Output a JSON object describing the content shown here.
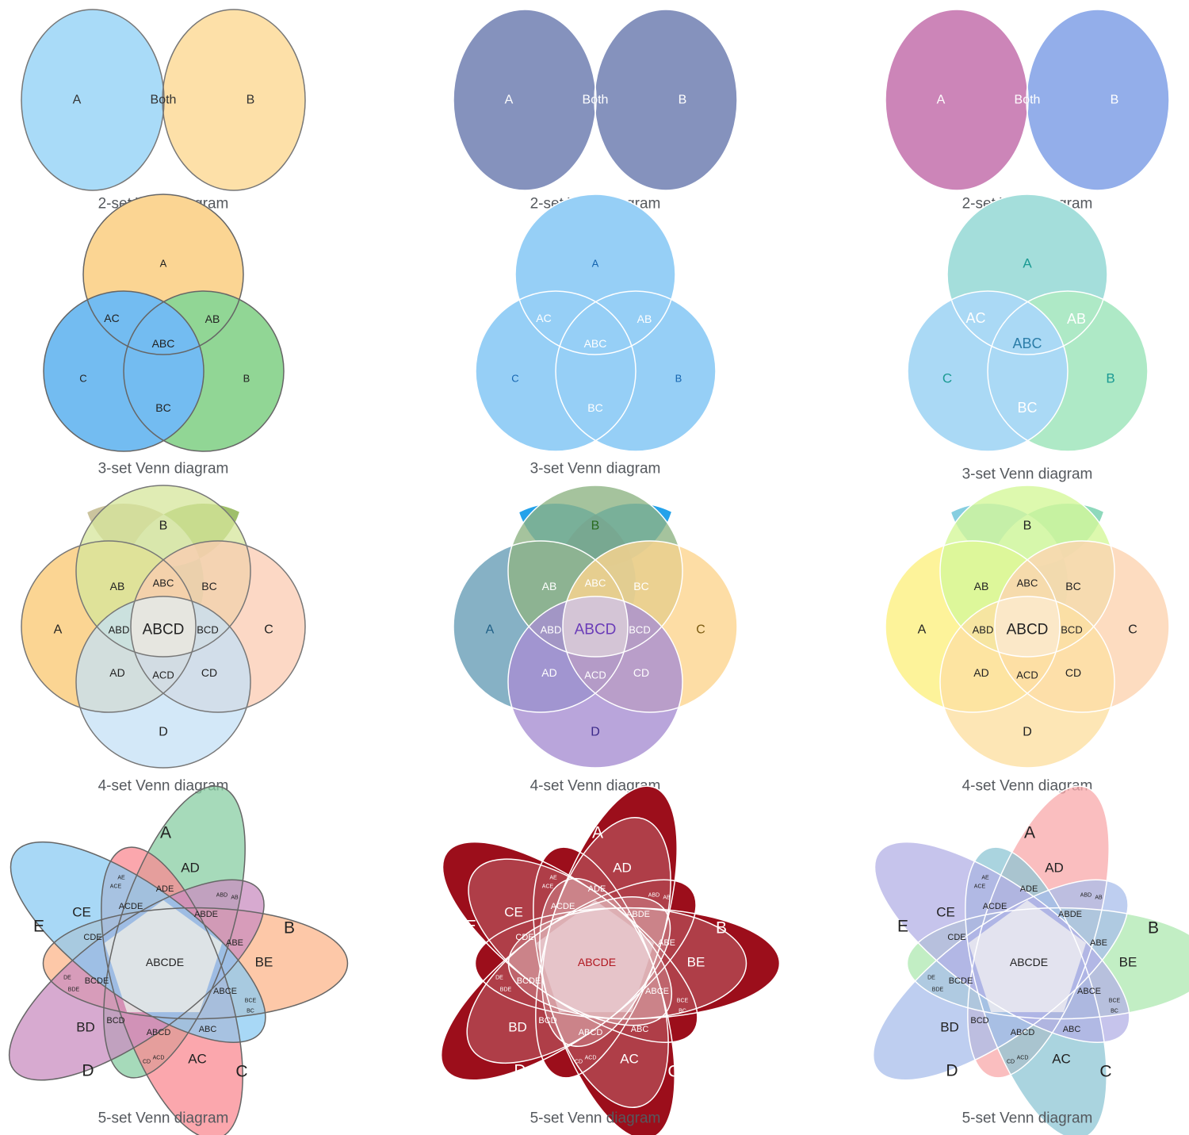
{
  "panels": [
    {
      "id": "venn2-light",
      "type": "venn2",
      "caption": "2-set Venn diagram",
      "style": "light",
      "fills": {
        "A": "#a9dbf8",
        "B": "#fde0a8",
        "AB": "#aec6c5"
      },
      "stroke": "#777777",
      "textColor": "#333333",
      "labels": {
        "A": "A",
        "B": "B",
        "AB": "Both"
      }
    },
    {
      "id": "venn2-navy",
      "type": "venn2",
      "caption": "2-set Venn diagram",
      "style": "navy",
      "fills": {
        "A": "#8592bd",
        "B": "#8592bd",
        "AB": "#3d5598"
      },
      "stroke": "#ffffff",
      "textColor": "#ffffff",
      "labels": {
        "A": "A",
        "B": "B",
        "AB": "Both"
      }
    },
    {
      "id": "venn2-purple",
      "type": "venn2",
      "caption": "2-set Venn diagram",
      "style": "purple",
      "fills": {
        "A": "#cc85b8",
        "B": "#93aeea",
        "AB": "#855aa8"
      },
      "stroke": "#ffffff",
      "textColor": "#ffffff",
      "labels": {
        "A": "A",
        "B": "B",
        "AB": "Both"
      }
    },
    {
      "id": "venn3-light",
      "type": "venn3",
      "caption": "3-set Venn diagram",
      "style": "light",
      "fills": {
        "A": "#fbd593",
        "B": "#91d695",
        "C": "#73bcf1",
        "AB": "#9fbf6a",
        "AC": "#cbc49e",
        "BC": "#6dc6a5",
        "ABC": "#e4ecdf"
      },
      "stroke": "#666666",
      "textColor": "#222222",
      "labels": {
        "A": "A",
        "B": "B",
        "C": "C",
        "AB": "AB",
        "AC": "AC",
        "BC": "BC",
        "ABC": "ABC"
      }
    },
    {
      "id": "venn3-blue",
      "type": "venn3",
      "caption": "3-set Venn diagram",
      "style": "blue",
      "fills": {
        "A": "#96cff6",
        "B": "#96cff6",
        "C": "#96cff6",
        "AB": "#24a2ea",
        "AC": "#24a2ea",
        "BC": "#24a2ea",
        "ABC": "#1e77c4"
      },
      "stroke": "#ffffff",
      "textColor": "#ffffff",
      "outerTextColor": "#1565b0",
      "labels": {
        "A": "A",
        "B": "B",
        "C": "C",
        "AB": "AB",
        "AC": "AC",
        "BC": "BC",
        "ABC": "ABC"
      }
    },
    {
      "id": "venn3-teal",
      "type": "venn3",
      "caption": "3-set Venn diagram",
      "style": "teal",
      "fills": {
        "A": "#a4dedb",
        "B": "#aee9c6",
        "C": "#aad9f5",
        "AB": "#8ed9bc",
        "AC": "#86cee0",
        "BC": "#91dccd",
        "ABC": "#ddf2ee"
      },
      "stroke": "#ffffff",
      "textColor": "#ffffff",
      "outerTextColor": "#1b9a93",
      "centerTextColor": "#2b7da8",
      "labels": {
        "A": "A",
        "B": "B",
        "C": "C",
        "AB": "AB",
        "AC": "AC",
        "BC": "BC",
        "ABC": "ABC"
      }
    },
    {
      "id": "venn4-light",
      "type": "venn4",
      "caption": "4-set Venn diagram",
      "style": "light",
      "fills": {
        "A": "#fbd593",
        "B": "#d6e59b",
        "C": "#fbcbb1",
        "D": "#c4e0f5",
        "center": "#e6e6e0"
      },
      "overlayOpacity": 0.55,
      "stroke": "#777777",
      "textColor": "#222222",
      "labels": {
        "A": "A",
        "B": "B",
        "C": "C",
        "D": "D",
        "AB": "AB",
        "ABC": "ABC",
        "BC": "BC",
        "ABD": "ABD",
        "ABCD": "ABCD",
        "BCD": "BCD",
        "AD": "AD",
        "ACD": "ACD",
        "CD": "CD"
      }
    },
    {
      "id": "venn4-dark",
      "type": "venn4",
      "caption": "4-set Venn diagram",
      "style": "dark",
      "fills": {
        "A": "#86b1c5",
        "B": "#8eb484",
        "C": "#fdd48e",
        "D": "#a78ed2",
        "center": "#d4c5d6"
      },
      "overlayOpacity": 0.6,
      "stroke": "#ffffff",
      "textColor": "#ffffff",
      "outerTextColors": {
        "A": "#1f5f86",
        "B": "#2a6b1f",
        "C": "#7a5a10",
        "D": "#3c2a8a"
      },
      "centerTextColor": "#6a3cb8",
      "labels": {
        "A": "A",
        "B": "B",
        "C": "C",
        "D": "D",
        "AB": "AB",
        "ABC": "ABC",
        "BC": "BC",
        "ABD": "ABD",
        "ABCD": "ABCD",
        "BCD": "BCD",
        "AD": "AD",
        "ACD": "ACD",
        "CD": "CD"
      }
    },
    {
      "id": "venn4-yellow",
      "type": "venn4",
      "caption": "4-set Venn diagram",
      "style": "yellow",
      "fills": {
        "A": "#fdf39a",
        "B": "#d4f89a",
        "C": "#fdd3b0",
        "D": "#fde0a3",
        "center": "#fbe8c8"
      },
      "overlayOpacity": 0.6,
      "stroke": "#ffffff",
      "textColor": "#222222",
      "labels": {
        "A": "A",
        "B": "B",
        "C": "C",
        "D": "D",
        "AB": "AB",
        "ABC": "ABC",
        "BC": "BC",
        "ABD": "ABD",
        "ABCD": "ABCD",
        "BCD": "BCD",
        "AD": "AD",
        "ACD": "ACD",
        "CD": "CD"
      }
    },
    {
      "id": "venn5-light",
      "type": "venn5",
      "caption": "5-set Venn diagram",
      "style": "light",
      "fills": {
        "A": "#88cda3",
        "B": "#fcb58b",
        "C": "#f98a92",
        "D": "#ca8ec0",
        "E": "#8bcbf3"
      },
      "overlayOpacity": 0.75,
      "centerFill": "#e7eae6",
      "stroke": "#666666",
      "textColor": "#222222",
      "labels": {
        "A": "A",
        "B": "B",
        "C": "C",
        "D": "D",
        "E": "E",
        "AD": "AD",
        "CE": "CE",
        "BE": "BE",
        "BD": "BD",
        "AC": "AC",
        "ADE": "ADE",
        "ACDE": "ACDE",
        "ABDE": "ABDE",
        "CDE": "CDE",
        "ABE": "ABE",
        "ABCE": "ABCE",
        "BCDE": "BCDE",
        "BCD": "BCD",
        "ABCD": "ABCD",
        "ABC": "ABC",
        "ABCDE": "ABCDE",
        "AE": "AE",
        "ACE": "ACE",
        "ABD": "ABD",
        "AB": "AB",
        "DE": "DE",
        "BDE": "BDE",
        "BCE": "BCE",
        "BC": "BC",
        "CD": "CD",
        "ACD": "ACD"
      }
    },
    {
      "id": "venn5-red",
      "type": "venn5",
      "caption": "5-set Venn diagram",
      "style": "red",
      "fills": {
        "A": "#9c0e1b",
        "B": "#9c0e1b",
        "C": "#9c0e1b",
        "D": "#9c0e1b",
        "E": "#9c0e1b"
      },
      "overlayFill": "#ffffff",
      "overlayOpacity": 0.2,
      "centerFill": "#e8c8cc",
      "stroke": "#ffffff",
      "textColor": "#ffffff",
      "centerTextColor": "#b0161f",
      "labels": {
        "A": "A",
        "B": "B",
        "C": "C",
        "D": "D",
        "E": "E",
        "AD": "AD",
        "CE": "CE",
        "BE": "BE",
        "BD": "BD",
        "AC": "AC",
        "ADE": "ADE",
        "ACDE": "ACDE",
        "ABDE": "ABDE",
        "CDE": "CDE",
        "ABE": "ABE",
        "ABCE": "ABCE",
        "BCDE": "BCDE",
        "BCD": "BCD",
        "ABCD": "ABCD",
        "ABC": "ABC",
        "ABCDE": "ABCDE",
        "AE": "AE",
        "ACE": "ACE",
        "ABD": "ABD",
        "AB": "AB",
        "DE": "DE",
        "BDE": "BDE",
        "BCE": "BCE",
        "BC": "BC",
        "CD": "CD",
        "ACD": "ACD"
      }
    },
    {
      "id": "venn5-pastel",
      "type": "venn5",
      "caption": "5-set Venn diagram",
      "style": "pastel",
      "fills": {
        "A": "#f8a8aa",
        "B": "#aee8b0",
        "C": "#8ec6d4",
        "D": "#a8bdeb",
        "E": "#b3b0e6"
      },
      "overlayOpacity": 0.75,
      "centerFill": "#ecebf1",
      "stroke": "#ffffff",
      "textColor": "#222222",
      "labels": {
        "A": "A",
        "B": "B",
        "C": "C",
        "D": "D",
        "E": "E",
        "AD": "AD",
        "CE": "CE",
        "BE": "BE",
        "BD": "BD",
        "AC": "AC",
        "ADE": "ADE",
        "ACDE": "ACDE",
        "ABDE": "ABDE",
        "CDE": "CDE",
        "ABE": "ABE",
        "ABCE": "ABCE",
        "BCDE": "BCDE",
        "BCD": "BCD",
        "ABCD": "ABCD",
        "ABC": "ABC",
        "ABCDE": "ABCDE",
        "AE": "AE",
        "ACE": "ACE",
        "ABD": "ABD",
        "AB": "AB",
        "DE": "DE",
        "BDE": "BDE",
        "BCE": "BCE",
        "BC": "BC",
        "CD": "CD",
        "ACD": "ACD"
      }
    }
  ]
}
